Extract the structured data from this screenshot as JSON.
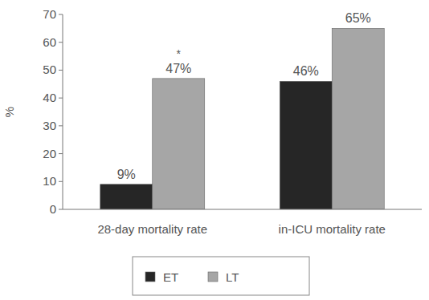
{
  "chart_data": {
    "type": "bar",
    "categories": [
      "28-day mortality rate",
      "in-ICU mortality rate"
    ],
    "series": [
      {
        "name": "ET",
        "color": "#262626",
        "values": [
          9,
          46
        ],
        "value_labels": [
          "9%",
          "46%"
        ]
      },
      {
        "name": "LT",
        "color": "#a6a6a6",
        "values": [
          47,
          65
        ],
        "value_labels": [
          "47%",
          "65%"
        ]
      }
    ],
    "y_label": "%",
    "ylim": [
      0,
      70
    ],
    "yticks": [
      0,
      10,
      20,
      30,
      40,
      50,
      60,
      70
    ],
    "grid": false,
    "legend": "bottom",
    "data_labels": true,
    "annotations": [
      {
        "text": "*",
        "category": "28-day mortality rate",
        "series": "LT"
      }
    ]
  }
}
